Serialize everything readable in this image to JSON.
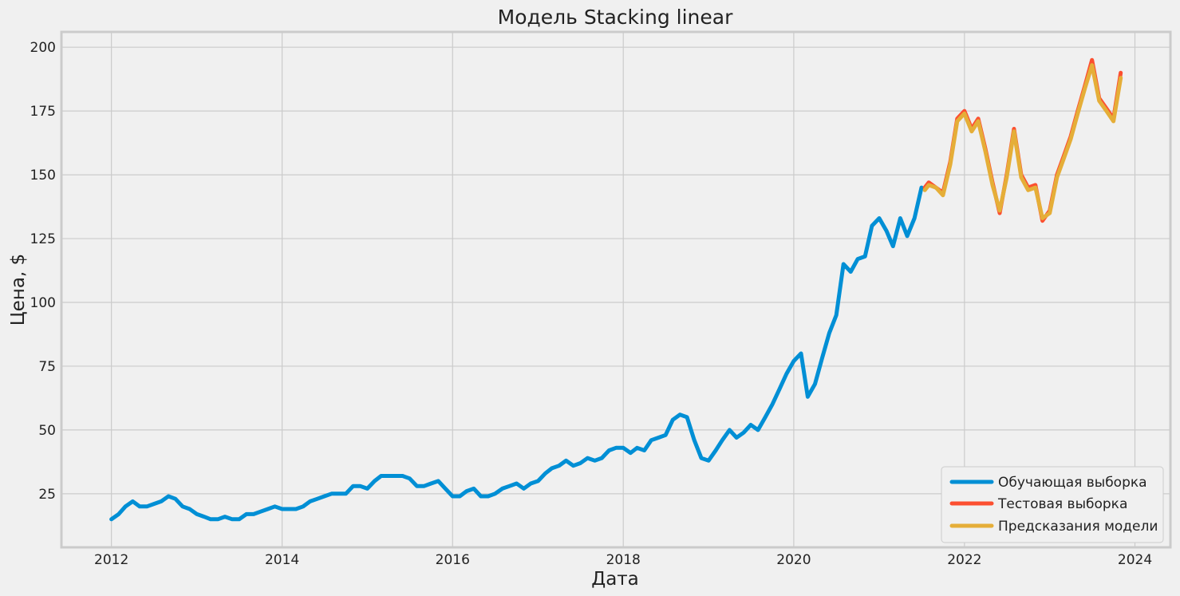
{
  "chart_data": {
    "type": "line",
    "title": "Модель Stacking linear",
    "xlabel": "Дата",
    "ylabel": "Цена, $",
    "x_ticks": [
      "2012",
      "2014",
      "2016",
      "2018",
      "2020",
      "2022",
      "2024"
    ],
    "y_ticks": [
      25,
      50,
      75,
      100,
      125,
      150,
      175,
      200
    ],
    "xlim": [
      "2011-06-01",
      "2024-06-01"
    ],
    "ylim": [
      4,
      206
    ],
    "grid": true,
    "legend_position": "bottom-right",
    "series": [
      {
        "name": "Обучающая выборка",
        "color": "#008fd5",
        "points": [
          [
            "2012-01-01",
            15
          ],
          [
            "2012-02-01",
            17
          ],
          [
            "2012-03-01",
            20
          ],
          [
            "2012-04-01",
            22
          ],
          [
            "2012-05-01",
            20
          ],
          [
            "2012-06-01",
            20
          ],
          [
            "2012-07-01",
            21
          ],
          [
            "2012-08-01",
            22
          ],
          [
            "2012-09-01",
            24
          ],
          [
            "2012-10-01",
            23
          ],
          [
            "2012-11-01",
            20
          ],
          [
            "2012-12-01",
            19
          ],
          [
            "2013-01-01",
            17
          ],
          [
            "2013-02-01",
            16
          ],
          [
            "2013-03-01",
            15
          ],
          [
            "2013-04-01",
            15
          ],
          [
            "2013-05-01",
            16
          ],
          [
            "2013-06-01",
            15
          ],
          [
            "2013-07-01",
            15
          ],
          [
            "2013-08-01",
            17
          ],
          [
            "2013-09-01",
            17
          ],
          [
            "2013-10-01",
            18
          ],
          [
            "2013-11-01",
            19
          ],
          [
            "2013-12-01",
            20
          ],
          [
            "2014-01-01",
            19
          ],
          [
            "2014-02-01",
            19
          ],
          [
            "2014-03-01",
            19
          ],
          [
            "2014-04-01",
            20
          ],
          [
            "2014-05-01",
            22
          ],
          [
            "2014-06-01",
            23
          ],
          [
            "2014-07-01",
            24
          ],
          [
            "2014-08-01",
            25
          ],
          [
            "2014-09-01",
            25
          ],
          [
            "2014-10-01",
            25
          ],
          [
            "2014-11-01",
            28
          ],
          [
            "2014-12-01",
            28
          ],
          [
            "2015-01-01",
            27
          ],
          [
            "2015-02-01",
            30
          ],
          [
            "2015-03-01",
            32
          ],
          [
            "2015-04-01",
            32
          ],
          [
            "2015-05-01",
            32
          ],
          [
            "2015-06-01",
            32
          ],
          [
            "2015-07-01",
            31
          ],
          [
            "2015-08-01",
            28
          ],
          [
            "2015-09-01",
            28
          ],
          [
            "2015-10-01",
            29
          ],
          [
            "2015-11-01",
            30
          ],
          [
            "2015-12-01",
            27
          ],
          [
            "2016-01-01",
            24
          ],
          [
            "2016-02-01",
            24
          ],
          [
            "2016-03-01",
            26
          ],
          [
            "2016-04-01",
            27
          ],
          [
            "2016-05-01",
            24
          ],
          [
            "2016-06-01",
            24
          ],
          [
            "2016-07-01",
            25
          ],
          [
            "2016-08-01",
            27
          ],
          [
            "2016-09-01",
            28
          ],
          [
            "2016-10-01",
            29
          ],
          [
            "2016-11-01",
            27
          ],
          [
            "2016-12-01",
            29
          ],
          [
            "2017-01-01",
            30
          ],
          [
            "2017-02-01",
            33
          ],
          [
            "2017-03-01",
            35
          ],
          [
            "2017-04-01",
            36
          ],
          [
            "2017-05-01",
            38
          ],
          [
            "2017-06-01",
            36
          ],
          [
            "2017-07-01",
            37
          ],
          [
            "2017-08-01",
            39
          ],
          [
            "2017-09-01",
            38
          ],
          [
            "2017-10-01",
            39
          ],
          [
            "2017-11-01",
            42
          ],
          [
            "2017-12-01",
            43
          ],
          [
            "2018-01-01",
            43
          ],
          [
            "2018-02-01",
            41
          ],
          [
            "2018-03-01",
            43
          ],
          [
            "2018-04-01",
            42
          ],
          [
            "2018-05-01",
            46
          ],
          [
            "2018-06-01",
            47
          ],
          [
            "2018-07-01",
            48
          ],
          [
            "2018-08-01",
            54
          ],
          [
            "2018-09-01",
            56
          ],
          [
            "2018-10-01",
            55
          ],
          [
            "2018-11-01",
            46
          ],
          [
            "2018-12-01",
            39
          ],
          [
            "2019-01-01",
            38
          ],
          [
            "2019-02-01",
            42
          ],
          [
            "2019-03-01",
            46
          ],
          [
            "2019-04-01",
            50
          ],
          [
            "2019-05-01",
            47
          ],
          [
            "2019-06-01",
            49
          ],
          [
            "2019-07-01",
            52
          ],
          [
            "2019-08-01",
            50
          ],
          [
            "2019-09-01",
            55
          ],
          [
            "2019-10-01",
            60
          ],
          [
            "2019-11-01",
            66
          ],
          [
            "2019-12-01",
            72
          ],
          [
            "2020-01-01",
            77
          ],
          [
            "2020-02-01",
            80
          ],
          [
            "2020-03-01",
            63
          ],
          [
            "2020-04-01",
            68
          ],
          [
            "2020-05-01",
            78
          ],
          [
            "2020-06-01",
            88
          ],
          [
            "2020-07-01",
            95
          ],
          [
            "2020-08-01",
            115
          ],
          [
            "2020-09-01",
            112
          ],
          [
            "2020-10-01",
            117
          ],
          [
            "2020-11-01",
            118
          ],
          [
            "2020-12-01",
            130
          ],
          [
            "2021-01-01",
            133
          ],
          [
            "2021-02-01",
            128
          ],
          [
            "2021-03-01",
            122
          ],
          [
            "2021-04-01",
            133
          ],
          [
            "2021-05-01",
            126
          ],
          [
            "2021-06-01",
            133
          ],
          [
            "2021-07-01",
            145
          ]
        ]
      },
      {
        "name": "Тестовая выборка",
        "color": "#fc4f30",
        "points": [
          [
            "2021-07-15",
            145
          ],
          [
            "2021-08-01",
            147
          ],
          [
            "2021-09-01",
            145
          ],
          [
            "2021-10-01",
            143
          ],
          [
            "2021-11-01",
            155
          ],
          [
            "2021-12-01",
            172
          ],
          [
            "2022-01-01",
            175
          ],
          [
            "2022-02-01",
            168
          ],
          [
            "2022-03-01",
            172
          ],
          [
            "2022-04-01",
            160
          ],
          [
            "2022-05-01",
            147
          ],
          [
            "2022-06-01",
            135
          ],
          [
            "2022-07-01",
            150
          ],
          [
            "2022-08-01",
            168
          ],
          [
            "2022-09-01",
            150
          ],
          [
            "2022-10-01",
            145
          ],
          [
            "2022-11-01",
            146
          ],
          [
            "2022-12-01",
            132
          ],
          [
            "2023-01-01",
            136
          ],
          [
            "2023-02-01",
            150
          ],
          [
            "2023-03-01",
            157
          ],
          [
            "2023-04-01",
            165
          ],
          [
            "2023-05-01",
            175
          ],
          [
            "2023-06-01",
            185
          ],
          [
            "2023-07-01",
            195
          ],
          [
            "2023-08-01",
            180
          ],
          [
            "2023-09-01",
            176
          ],
          [
            "2023-10-01",
            172
          ],
          [
            "2023-11-01",
            190
          ]
        ]
      },
      {
        "name": "Предсказания модели",
        "color": "#e5ae38",
        "points": [
          [
            "2021-07-15",
            144
          ],
          [
            "2021-08-01",
            146
          ],
          [
            "2021-09-01",
            145
          ],
          [
            "2021-10-01",
            142
          ],
          [
            "2021-11-01",
            154
          ],
          [
            "2021-12-01",
            171
          ],
          [
            "2022-01-01",
            174
          ],
          [
            "2022-02-01",
            167
          ],
          [
            "2022-03-01",
            171
          ],
          [
            "2022-04-01",
            159
          ],
          [
            "2022-05-01",
            146
          ],
          [
            "2022-06-01",
            136
          ],
          [
            "2022-07-01",
            149
          ],
          [
            "2022-08-01",
            167
          ],
          [
            "2022-09-01",
            149
          ],
          [
            "2022-10-01",
            144
          ],
          [
            "2022-11-01",
            145
          ],
          [
            "2022-12-01",
            133
          ],
          [
            "2023-01-01",
            135
          ],
          [
            "2023-02-01",
            149
          ],
          [
            "2023-03-01",
            156
          ],
          [
            "2023-04-01",
            164
          ],
          [
            "2023-05-01",
            174
          ],
          [
            "2023-06-01",
            184
          ],
          [
            "2023-07-01",
            193
          ],
          [
            "2023-08-01",
            179
          ],
          [
            "2023-09-01",
            175
          ],
          [
            "2023-10-01",
            171
          ],
          [
            "2023-11-01",
            188
          ]
        ]
      }
    ]
  }
}
